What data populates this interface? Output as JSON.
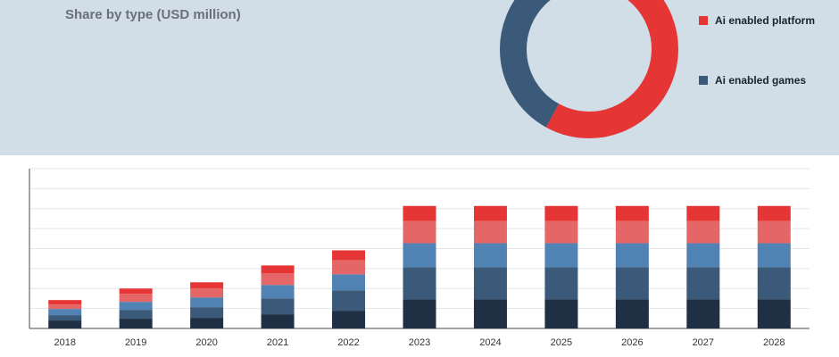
{
  "header": {
    "title": "Share by type (USD million)"
  },
  "chart_data": [
    {
      "type": "pie",
      "variant": "donut",
      "series": [
        {
          "name": "Ai enabled platform",
          "share": 0.58,
          "color": "#e53535"
        },
        {
          "name": "Ai enabled games",
          "share": 0.42,
          "color": "#3b5a7a"
        }
      ],
      "legend_position": "right"
    },
    {
      "type": "bar",
      "stacked": true,
      "categories": [
        "2018",
        "2019",
        "2020",
        "2021",
        "2022",
        "2023",
        "2024",
        "2025",
        "2026",
        "2027",
        "2028"
      ],
      "series": [
        {
          "color": "#1f3044",
          "values": [
            9,
            11,
            12,
            16,
            20,
            33,
            33,
            33,
            33,
            33,
            33
          ]
        },
        {
          "color": "#3b5a7a",
          "values": [
            6,
            10,
            12,
            18,
            23,
            36,
            36,
            36,
            36,
            36,
            36
          ]
        },
        {
          "color": "#5182b4",
          "values": [
            7,
            9,
            11,
            15,
            18,
            27,
            27,
            27,
            27,
            27,
            27
          ]
        },
        {
          "color": "#e56666",
          "values": [
            5,
            9,
            10,
            13,
            16,
            25,
            25,
            25,
            25,
            25,
            25
          ]
        },
        {
          "color": "#e53535",
          "values": [
            5,
            6,
            7,
            9,
            11,
            17,
            17,
            17,
            17,
            17,
            17
          ]
        }
      ],
      "ylim": [
        0,
        180
      ],
      "grid": true,
      "y_tick_labels_shown": false
    }
  ]
}
